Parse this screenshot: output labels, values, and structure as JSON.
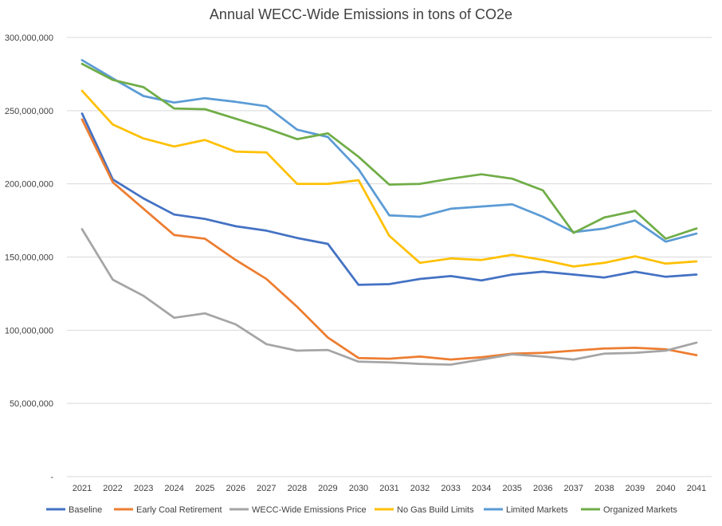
{
  "chart_data": {
    "type": "line",
    "title": "Annual WECC-Wide Emissions in tons of CO2e",
    "xlabel": "",
    "ylabel": "",
    "ylim": [
      0,
      300000000
    ],
    "y_ticks": [
      "-",
      "50,000,000",
      "100,000,000",
      "150,000,000",
      "200,000,000",
      "250,000,000",
      "300,000,000"
    ],
    "y_tick_values": [
      0,
      50000000,
      100000000,
      150000000,
      200000000,
      250000000,
      300000000
    ],
    "grid": "horizontal",
    "legend_position": "bottom",
    "categories": [
      "2021",
      "2022",
      "2023",
      "2024",
      "2025",
      "2026",
      "2027",
      "2028",
      "2029",
      "2030",
      "2031",
      "2032",
      "2033",
      "2034",
      "2035",
      "2036",
      "2037",
      "2038",
      "2039",
      "2040",
      "2041"
    ],
    "series": [
      {
        "name": "Baseline",
        "color": "#4472C4",
        "values": [
          248000000,
          203000000,
          190000000,
          179000000,
          176000000,
          171000000,
          168000000,
          163000000,
          159000000,
          131000000,
          131500000,
          135000000,
          137000000,
          134000000,
          138000000,
          140000000,
          138000000,
          136000000,
          140000000,
          136500000,
          138000000
        ]
      },
      {
        "name": "Early Coal Retirement",
        "color": "#ED7D31",
        "values": [
          244000000,
          201000000,
          183000000,
          165000000,
          162500000,
          148000000,
          135000000,
          116000000,
          95000000,
          81000000,
          80500000,
          82000000,
          80000000,
          81500000,
          84000000,
          84500000,
          86000000,
          87500000,
          88000000,
          87000000,
          83000000
        ]
      },
      {
        "name": "WECC-Wide Emissions Price",
        "color": "#A5A5A5",
        "values": [
          169000000,
          134500000,
          123500000,
          108500000,
          111500000,
          104000000,
          90500000,
          86000000,
          86500000,
          78500000,
          78000000,
          77000000,
          76500000,
          80000000,
          83500000,
          82000000,
          80000000,
          84000000,
          84500000,
          86000000,
          91500000
        ]
      },
      {
        "name": "No Gas Build Limits",
        "color": "#FFC000",
        "values": [
          263500000,
          240500000,
          231000000,
          225500000,
          230000000,
          222000000,
          221500000,
          200000000,
          200000000,
          202500000,
          164500000,
          146000000,
          149000000,
          148000000,
          151500000,
          148000000,
          143500000,
          146000000,
          150500000,
          145500000,
          147000000
        ]
      },
      {
        "name": "Limited Markets",
        "color": "#5B9BD5",
        "values": [
          284500000,
          272000000,
          260000000,
          255500000,
          258500000,
          256000000,
          253000000,
          237000000,
          232000000,
          210000000,
          178500000,
          177500000,
          183000000,
          184500000,
          186000000,
          177500000,
          167000000,
          169500000,
          175000000,
          160500000,
          166000000
        ]
      },
      {
        "name": "Organized Markets",
        "color": "#70AD47",
        "values": [
          282000000,
          271000000,
          266000000,
          251500000,
          251000000,
          244500000,
          238000000,
          230500000,
          234500000,
          218500000,
          199500000,
          200000000,
          203500000,
          206500000,
          203500000,
          195500000,
          166500000,
          177000000,
          181500000,
          162500000,
          169500000
        ]
      }
    ]
  }
}
